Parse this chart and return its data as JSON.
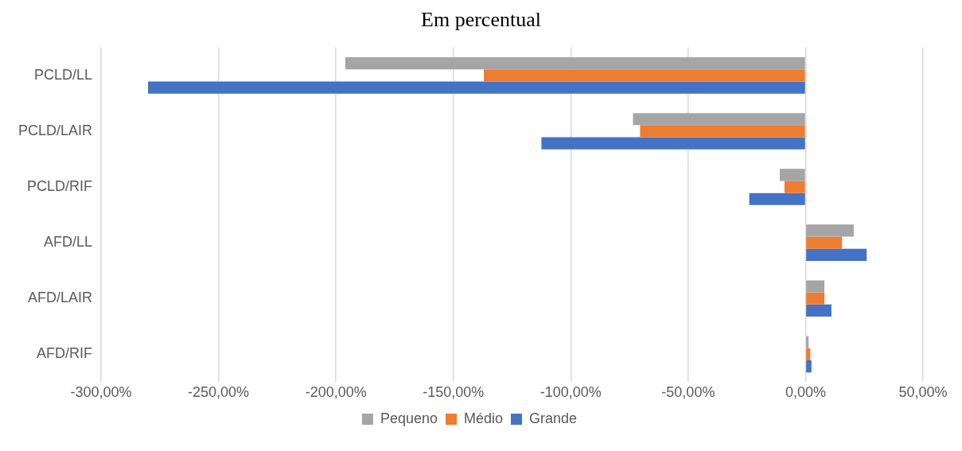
{
  "chart_data": {
    "type": "bar",
    "orientation": "horizontal",
    "title": "Em percentual",
    "categories": [
      "PCLD/LL",
      "PCLD/LAIR",
      "PCLD/RIF",
      "AFD/LL",
      "AFD/LAIR",
      "AFD/RIF"
    ],
    "series": [
      {
        "name": "Pequeno",
        "color": "#a5a5a5",
        "values": [
          -196,
          -73.5,
          -11,
          20.5,
          8,
          1.3
        ]
      },
      {
        "name": "Médio",
        "color": "#ed7d31",
        "values": [
          -137,
          -70.5,
          -9,
          15.5,
          8,
          2
        ]
      },
      {
        "name": "Grande",
        "color": "#4472c4",
        "values": [
          -280,
          -112.5,
          -24,
          26,
          11,
          2.5
        ]
      }
    ],
    "xlim": [
      -300,
      50
    ],
    "xticks": [
      {
        "value": -300,
        "label": "-300,00%"
      },
      {
        "value": -250,
        "label": "-250,00%"
      },
      {
        "value": -200,
        "label": "-200,00%"
      },
      {
        "value": -150,
        "label": "-150,00%"
      },
      {
        "value": -100,
        "label": "-100,00%"
      },
      {
        "value": -50,
        "label": "-50,00%"
      },
      {
        "value": 0,
        "label": "0,00%"
      },
      {
        "value": 50,
        "label": "50,00%"
      }
    ],
    "grid": "x",
    "legend": "bottom"
  }
}
